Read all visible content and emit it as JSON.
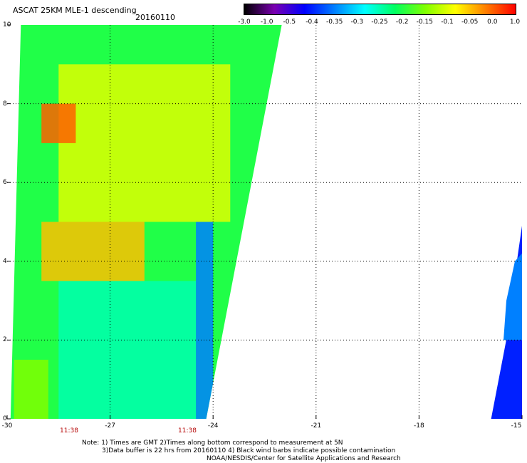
{
  "header": {
    "title": "ASCAT 25KM MLE-1 descending",
    "date": "20160110"
  },
  "colorbar": {
    "labels": [
      "-3.0",
      "-1.0",
      "-0.5",
      "-0.4",
      "-0.35",
      "-0.3",
      "-0.25",
      "-0.2",
      "-0.15",
      "-0.1",
      "-0.05",
      "0.0",
      "1.0"
    ],
    "colors": [
      "#000000",
      "#7a00b0",
      "#0000ff",
      "#0080ff",
      "#00ffff",
      "#00ff60",
      "#80ff00",
      "#ffff00",
      "#ff8000",
      "#ff0000"
    ]
  },
  "axes": {
    "y_ticks": [
      "0",
      "2",
      "4",
      "6",
      "8",
      "10"
    ],
    "x_ticks": [
      "-30",
      "-27",
      "-24",
      "-21",
      "-18",
      "-15"
    ]
  },
  "pass_times": [
    "11:38",
    "11:38"
  ],
  "notes": {
    "line1": "Note: 1) Times are GMT 2)Times along bottom correspond to measurement at 5N",
    "line2": "3)Data buffer is 22 hrs from 20160110 4) Black wind barbs indicate possible contamination",
    "line3": "NOAA/NESDIS/Center for Satellite Applications and Research"
  },
  "chart_data": {
    "type": "heatmap",
    "xlim": [
      -30,
      -15
    ],
    "ylim": [
      0,
      10
    ],
    "value_scale": [
      "-3.0",
      "-1.0",
      "-0.5",
      "-0.4",
      "-0.35",
      "-0.3",
      "-0.25",
      "-0.2",
      "-0.15",
      "-0.1",
      "-0.05",
      "0.0",
      "1.0"
    ],
    "swaths": [
      {
        "lon_range_bottom": [
          -29.9,
          -24.2
        ],
        "lon_range_top": [
          -29.6,
          -22.0
        ],
        "lat_range": [
          0,
          10
        ]
      },
      {
        "lon_range": [
          -15.9,
          -15.0
        ],
        "lat_range": [
          0,
          4.9
        ]
      }
    ],
    "regions": [
      {
        "lat_range": [
          0,
          3.5
        ],
        "lon_range": [
          -28.5,
          -24.5
        ],
        "value": "-0.25"
      },
      {
        "lat_range": [
          0,
          1.5
        ],
        "lon_range": [
          -29.8,
          -28.8
        ],
        "value": "-0.15"
      },
      {
        "lat_range": [
          3.5,
          5.0
        ],
        "lon_range": [
          -29.0,
          -26.0
        ],
        "value": "-0.05"
      },
      {
        "lat_range": [
          5.0,
          9.0
        ],
        "lon_range": [
          -28.5,
          -23.5
        ],
        "value": "-0.1"
      },
      {
        "lat_range": [
          7.0,
          8.0
        ],
        "lon_range": [
          -29.0,
          -28.0
        ],
        "value": "0.0"
      },
      {
        "lat_range": [
          0,
          5.0
        ],
        "lon_range": [
          -24.5,
          -24.0
        ],
        "value": "-0.35"
      },
      {
        "lat_range": [
          0,
          4.0
        ],
        "lon_range": [
          -15.9,
          -15.0
        ],
        "value": "-0.4"
      }
    ]
  }
}
